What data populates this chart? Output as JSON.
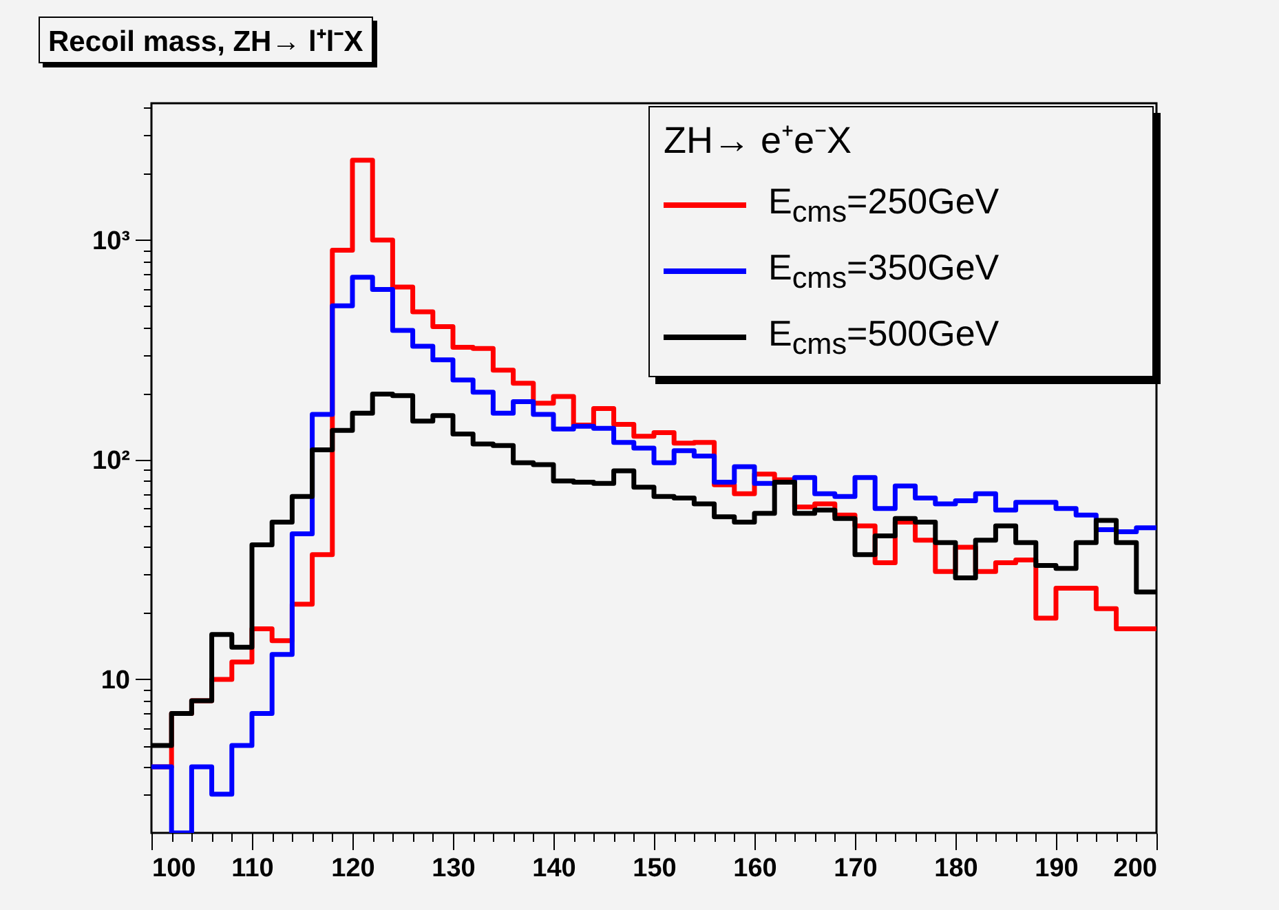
{
  "chart_data": {
    "type": "histogram",
    "title": "Recoil mass, ZH→ l⁺l⁻X",
    "legend_title": "ZH→ e⁺e⁻X",
    "bins": [
      100,
      102,
      104,
      106,
      108,
      110,
      112,
      114,
      116,
      118,
      120,
      122,
      124,
      126,
      128,
      130,
      132,
      134,
      136,
      138,
      140,
      142,
      144,
      146,
      148,
      150,
      152,
      154,
      156,
      158,
      160,
      162,
      164,
      166,
      168,
      170,
      172,
      174,
      176,
      178,
      180,
      182,
      184,
      186,
      188,
      190,
      192,
      194,
      196,
      198,
      200
    ],
    "series": [
      {
        "name": "E$_{cms}$=250GeV",
        "color": "#ff0000",
        "values": [
          4,
          7,
          8,
          10,
          12,
          17,
          15,
          22,
          37,
          900,
          2310,
          1000,
          612,
          472,
          404,
          325,
          321,
          256,
          223,
          181,
          194,
          144,
          171,
          145,
          128,
          133,
          119,
          120,
          77,
          70,
          86,
          81,
          61,
          63,
          56,
          50,
          34,
          52,
          43,
          31,
          40,
          31,
          34,
          35,
          19,
          26,
          26,
          21,
          17,
          17
        ]
      },
      {
        "name": "E$_{cms}$=350GeV",
        "color": "#0000ff",
        "values": [
          4,
          2,
          4,
          3,
          5,
          7,
          13,
          46,
          161,
          502,
          678,
          596,
          388,
          329,
          285,
          231,
          203,
          163,
          184,
          161,
          138,
          142,
          139,
          120,
          113,
          97,
          110,
          104,
          79,
          93,
          78,
          79,
          83,
          70,
          68,
          83,
          60,
          76,
          67,
          63,
          65,
          70,
          59,
          64,
          64,
          60,
          56,
          48,
          47,
          49
        ]
      },
      {
        "name": "E$_{cms}$=500GeV",
        "color": "#000000",
        "values": [
          5,
          7,
          8,
          16,
          14,
          41,
          52,
          68,
          111,
          136,
          163,
          199,
          196,
          150,
          159,
          131,
          118,
          116,
          97,
          95,
          80,
          79,
          78,
          89,
          75,
          68,
          67,
          63,
          55,
          52,
          57,
          79,
          57,
          59,
          54,
          37,
          45,
          54,
          52,
          42,
          29,
          43,
          50,
          42,
          33,
          32,
          42,
          53,
          42,
          25
        ]
      }
    ],
    "xlim": [
      100,
      200
    ],
    "xticks": [
      100,
      {
        "value": 102,
        "label": null
      },
      {
        "value": 104,
        "label": null
      },
      {
        "value": 106,
        "label": null
      },
      {
        "value": 108,
        "label": null
      },
      110,
      {
        "value": 112,
        "label": null
      },
      {
        "value": 114,
        "label": null
      },
      {
        "value": 116,
        "label": null
      },
      {
        "value": 118,
        "label": null
      },
      120,
      {
        "value": 122,
        "label": null
      },
      {
        "value": 124,
        "label": null
      },
      {
        "value": 126,
        "label": null
      },
      {
        "value": 128,
        "label": null
      },
      130,
      {
        "value": 132,
        "label": null
      },
      {
        "value": 134,
        "label": null
      },
      {
        "value": 136,
        "label": null
      },
      {
        "value": 138,
        "label": null
      },
      140,
      {
        "value": 142,
        "label": null
      },
      {
        "value": 144,
        "label": null
      },
      {
        "value": 146,
        "label": null
      },
      {
        "value": 148,
        "label": null
      },
      150,
      {
        "value": 152,
        "label": null
      },
      {
        "value": 154,
        "label": null
      },
      {
        "value": 156,
        "label": null
      },
      {
        "value": 158,
        "label": null
      },
      160,
      {
        "value": 162,
        "label": null
      },
      {
        "value": 164,
        "label": null
      },
      {
        "value": 166,
        "label": null
      },
      {
        "value": 168,
        "label": null
      },
      170,
      {
        "value": 172,
        "label": null
      },
      {
        "value": 174,
        "label": null
      },
      {
        "value": 176,
        "label": null
      },
      {
        "value": 178,
        "label": null
      },
      180,
      {
        "value": 182,
        "label": null
      },
      {
        "value": 184,
        "label": null
      },
      {
        "value": 186,
        "label": null
      },
      {
        "value": 188,
        "label": null
      },
      190,
      {
        "value": 192,
        "label": null
      },
      {
        "value": 194,
        "label": null
      },
      {
        "value": 196,
        "label": null
      },
      {
        "value": 198,
        "label": null
      },
      200
    ],
    "ylim": [
      2,
      4200
    ],
    "yticks": [
      {
        "value": 3,
        "label": null
      },
      {
        "value": 4,
        "label": null
      },
      {
        "value": 5,
        "label": null
      },
      {
        "value": 6,
        "label": null
      },
      {
        "value": 7,
        "label": null
      },
      {
        "value": 8,
        "label": null
      },
      {
        "value": 9,
        "label": null
      },
      10,
      {
        "value": 20,
        "label": null
      },
      {
        "value": 30,
        "label": null
      },
      {
        "value": 40,
        "label": null
      },
      {
        "value": 50,
        "label": null
      },
      {
        "value": 60,
        "label": null
      },
      {
        "value": 70,
        "label": null
      },
      {
        "value": 80,
        "label": null
      },
      {
        "value": 90,
        "label": null
      },
      {
        "value": 100,
        "label": "10²"
      },
      {
        "value": 200,
        "label": null
      },
      {
        "value": 300,
        "label": null
      },
      {
        "value": 400,
        "label": null
      },
      {
        "value": 500,
        "label": null
      },
      {
        "value": 600,
        "label": null
      },
      {
        "value": 700,
        "label": null
      },
      {
        "value": 800,
        "label": null
      },
      {
        "value": 900,
        "label": null
      },
      {
        "value": 1000,
        "label": "10³"
      },
      {
        "value": 2000,
        "label": null
      },
      {
        "value": 3000,
        "label": null
      },
      {
        "value": 4000,
        "label": null
      }
    ],
    "log": "y",
    "grid": false,
    "legend": "top right",
    "line_style": "solid"
  }
}
